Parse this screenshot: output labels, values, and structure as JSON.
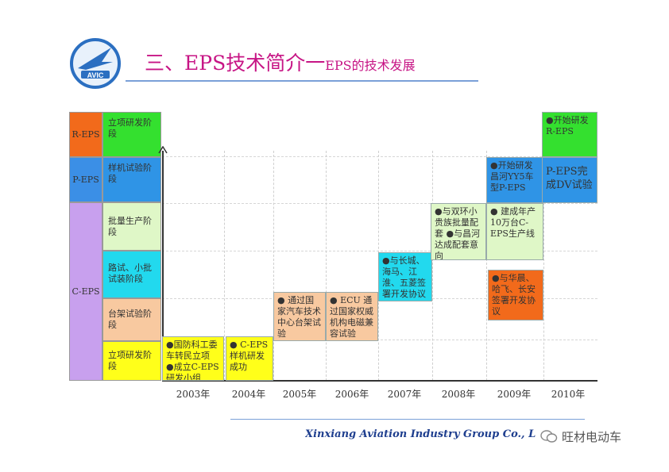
{
  "header": {
    "logo_text": "AVIC",
    "title_main": "三、EPS技术简介一",
    "title_sub": "EPS的技术发展"
  },
  "types": {
    "r": "R-EPS",
    "p": "P-EPS",
    "c": "C-EPS"
  },
  "stages": {
    "r": "立项研发阶段",
    "p": "样机试验阶段",
    "mass": "批量生产阶段",
    "road": "路试、小批试装阶段",
    "bench": "台架试验阶段",
    "proj": "立项研发阶段"
  },
  "events": {
    "e2003": "●国防科工委车转民立项 ●成立C-EPS研发小组",
    "e2004": "● C-EPS样机研发成功",
    "e2005": "● 通过国家汽车技术中心台架试验",
    "e2006": "● ECU 通过国家权威机构电磁兼容试验",
    "e2007": "●与长城、海马、江淮、五菱签署开发协议",
    "e2008": "●与双环小贵族批量配套 ●与昌河达成配套意向",
    "e2009a": "●开始研发昌河YY5车型P-EPS",
    "e2009b": "● 建成年产10万台C-EPS生产线",
    "e2009c": "●与华晨、哈飞、长安签署开发协议",
    "e2010a": "●开始研发R-EPS",
    "e2010b": "P-EPS完成DV试验"
  },
  "years": [
    "2003年",
    "2004年",
    "2005年",
    "2006年",
    "2007年",
    "2008年",
    "2009年",
    "2010年"
  ],
  "footer": {
    "company": "Xinxiang Aviation Industry Group Co., Ltd",
    "watermark": "旺材电动车"
  },
  "colors": {
    "title": "#c71585",
    "footer_text": "#1f3f8f",
    "r_eps": "#f26a1b",
    "p_eps": "#3b8fe6",
    "c_eps": "#c8a0ee",
    "green": "#34e02f",
    "blue": "#2f94e6",
    "light_green": "#dff7c7",
    "cyan": "#22d9ee",
    "peach": "#f8c9a0",
    "yellow": "#ffff1a",
    "orange": "#f26a1b"
  }
}
